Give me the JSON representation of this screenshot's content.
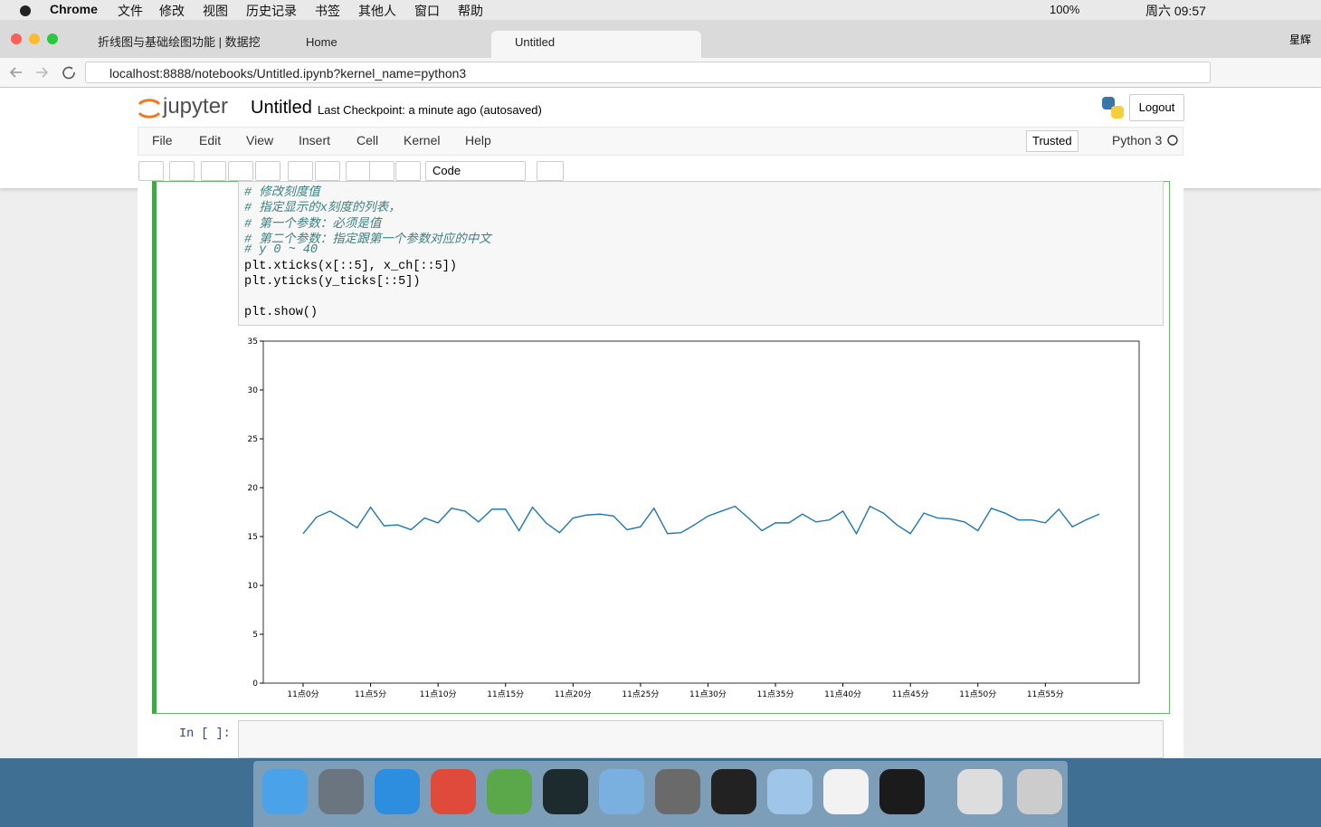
{
  "menubar": {
    "app": "Chrome",
    "items": [
      "文件",
      "修改",
      "视图",
      "历史记录",
      "书签",
      "其他人",
      "窗口",
      "帮助"
    ],
    "battery": "100%",
    "clock": "周六 09:57"
  },
  "browser": {
    "tabs": [
      "折线图与基础绘图功能 | 数据挖",
      "Home",
      "Untitled"
    ],
    "profile": "星辉",
    "url": "localhost:8888/notebooks/Untitled.ipynb?kernel_name=python3"
  },
  "notebook": {
    "logo": "jupyter",
    "name": "Untitled",
    "checkpoint": "Last Checkpoint: a minute ago (autosaved)",
    "logout": "Logout",
    "menu": [
      "File",
      "Edit",
      "View",
      "Insert",
      "Cell",
      "Kernel",
      "Help"
    ],
    "trusted": "Trusted",
    "kernel": "Python 3",
    "cell_type": "Code",
    "code": [
      "# 修改刻度值",
      "# 指定显示的x刻度的列表，",
      "# 第一个参数：必须是值",
      "# 第二个参数：指定跟第一个参数对应的中文",
      "# y 0 ~ 40",
      "plt.xticks(x[::5], x_ch[::5])",
      "plt.yticks(y_ticks[::5])",
      "plt.show()"
    ],
    "prompt": "In [ ]:"
  },
  "chart_data": {
    "type": "line",
    "x": [
      0,
      1,
      2,
      3,
      4,
      5,
      6,
      7,
      8,
      9,
      10,
      11,
      12,
      13,
      14,
      15,
      16,
      17,
      18,
      19,
      20,
      21,
      22,
      23,
      24,
      25,
      26,
      27,
      28,
      29,
      30,
      31,
      32,
      33,
      34,
      35,
      36,
      37,
      38,
      39,
      40,
      41,
      42,
      43,
      44,
      45,
      46,
      47,
      48,
      49,
      50,
      51,
      52,
      53,
      54,
      55,
      56,
      57,
      58,
      59
    ],
    "series": [
      {
        "color": "#1f77b4",
        "values": [
          15.3,
          17.0,
          17.6,
          16.8,
          15.9,
          18.0,
          16.1,
          16.2,
          15.7,
          16.9,
          16.4,
          17.9,
          17.6,
          16.5,
          17.8,
          17.8,
          15.6,
          18.0,
          16.4,
          15.4,
          16.9,
          17.2,
          17.3,
          17.1,
          15.7,
          16.0,
          17.9,
          15.3,
          15.4,
          16.2,
          17.1,
          17.6,
          18.1,
          16.9,
          15.6,
          16.4,
          16.4,
          17.3,
          16.5,
          16.7,
          17.6,
          15.3,
          18.1,
          17.4,
          16.2,
          15.3,
          17.4,
          16.9,
          16.8,
          16.5,
          15.6,
          17.9,
          17.4,
          16.7,
          16.7,
          16.4,
          17.8,
          16.0,
          16.7,
          17.3
        ]
      }
    ],
    "xlim": [
      -2.95,
      61.95
    ],
    "ylim": [
      0,
      35
    ],
    "xticks": [
      {
        "value": 0,
        "label": "11点0分"
      },
      {
        "value": 5,
        "label": "11点5分"
      },
      {
        "value": 10,
        "label": "11点10分"
      },
      {
        "value": 15,
        "label": "11点15分"
      },
      {
        "value": 20,
        "label": "11点20分"
      },
      {
        "value": 25,
        "label": "11点25分"
      },
      {
        "value": 30,
        "label": "11点30分"
      },
      {
        "value": 35,
        "label": "11点35分"
      },
      {
        "value": 40,
        "label": "11点40分"
      },
      {
        "value": 45,
        "label": "11点45分"
      },
      {
        "value": 50,
        "label": "11点50分"
      },
      {
        "value": 55,
        "label": "11点55分"
      }
    ],
    "yticks": [
      0,
      5,
      10,
      15,
      20,
      25,
      30,
      35
    ]
  }
}
